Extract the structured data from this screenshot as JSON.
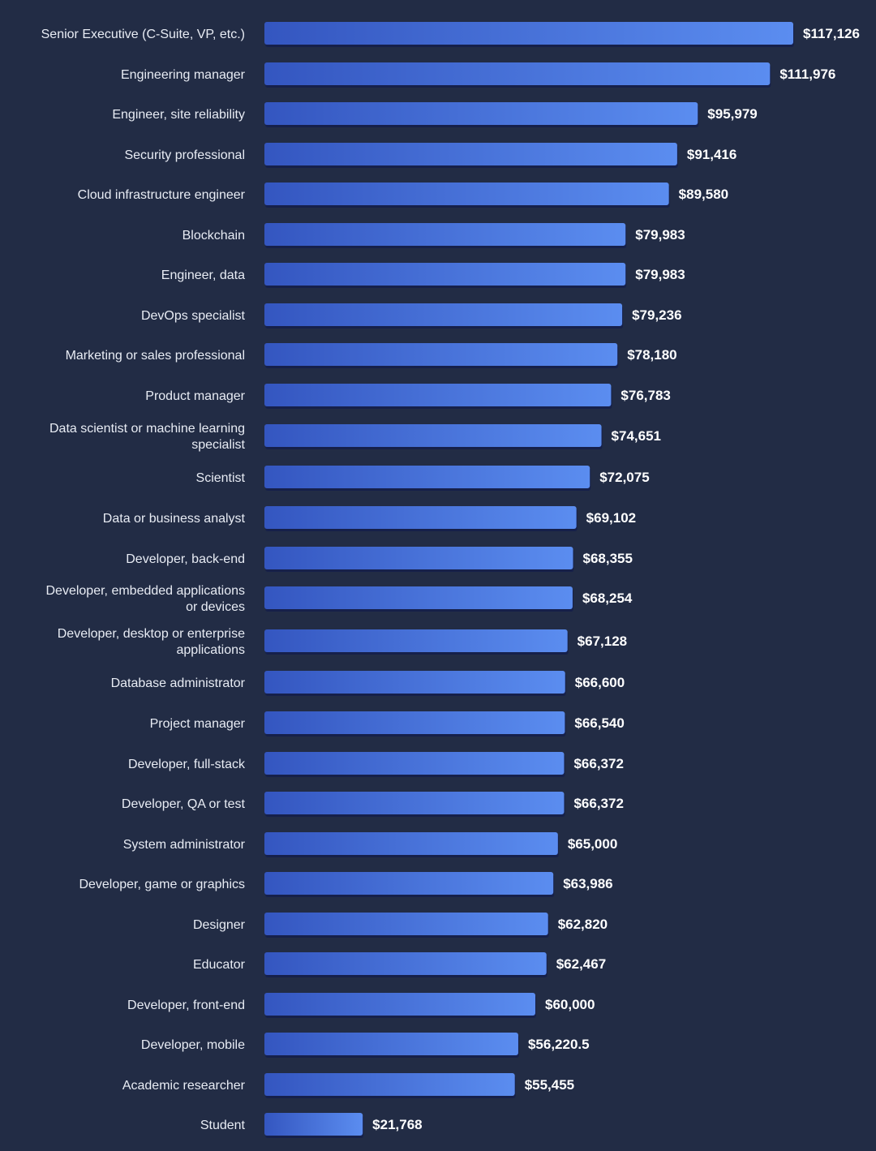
{
  "colors": {
    "background": "#222c45",
    "bar_start": "#3456c0",
    "bar_end": "#5b8df0",
    "bar_shadow": "#16204a",
    "label": "#e8ecf4",
    "value": "#ffffff"
  },
  "chart_data": {
    "type": "bar",
    "orientation": "horizontal",
    "title": "",
    "xlabel": "",
    "ylabel": "",
    "grid": false,
    "value_prefix": "$",
    "xlim": [
      0,
      117126
    ],
    "categories": [
      "Senior Executive (C-Suite, VP, etc.)",
      "Engineering manager",
      "Engineer, site reliability",
      "Security professional",
      "Cloud infrastructure engineer",
      "Blockchain",
      "Engineer, data",
      "DevOps specialist",
      "Marketing or sales professional",
      "Product manager",
      "Data scientist or machine learning specialist",
      "Scientist",
      "Data or business analyst",
      "Developer, back-end",
      "Developer, embedded applications or devices",
      "Developer, desktop or enterprise applications",
      "Database administrator",
      "Project manager",
      "Developer, full-stack",
      "Developer, QA or test",
      "System administrator",
      "Developer, game or graphics",
      "Designer",
      "Educator",
      "Developer, front-end",
      "Developer, mobile",
      "Academic researcher",
      "Student"
    ],
    "category_lines": [
      [
        "Senior Executive (C-Suite, VP, etc.)"
      ],
      [
        "Engineering manager"
      ],
      [
        "Engineer, site reliability"
      ],
      [
        "Security professional"
      ],
      [
        "Cloud infrastructure engineer"
      ],
      [
        "Blockchain"
      ],
      [
        "Engineer, data"
      ],
      [
        "DevOps specialist"
      ],
      [
        "Marketing or sales professional"
      ],
      [
        "Product manager"
      ],
      [
        "Data scientist or machine learning",
        "specialist"
      ],
      [
        "Scientist"
      ],
      [
        "Data or business analyst"
      ],
      [
        "Developer, back-end"
      ],
      [
        "Developer, embedded applications",
        "or devices"
      ],
      [
        "Developer, desktop or enterprise",
        "applications"
      ],
      [
        "Database administrator"
      ],
      [
        "Project manager"
      ],
      [
        "Developer, full-stack"
      ],
      [
        "Developer, QA or test"
      ],
      [
        "System administrator"
      ],
      [
        "Developer, game or graphics"
      ],
      [
        "Designer"
      ],
      [
        "Educator"
      ],
      [
        "Developer, front-end"
      ],
      [
        "Developer, mobile"
      ],
      [
        "Academic researcher"
      ],
      [
        "Student"
      ]
    ],
    "values": [
      117126,
      111976,
      95979,
      91416,
      89580,
      79983,
      79983,
      79236,
      78180,
      76783,
      74651,
      72075,
      69102,
      68355,
      68254,
      67128,
      66600,
      66540,
      66372,
      66372,
      65000,
      63986,
      62820,
      62467,
      60000,
      56220.5,
      55455,
      21768
    ],
    "value_labels": [
      "$117,126",
      "$111,976",
      "$95,979",
      "$91,416",
      "$89,580",
      "$79,983",
      "$79,983",
      "$79,236",
      "$78,180",
      "$76,783",
      "$74,651",
      "$72,075",
      "$69,102",
      "$68,355",
      "$68,254",
      "$67,128",
      "$66,600",
      "$66,540",
      "$66,372",
      "$66,372",
      "$65,000",
      "$63,986",
      "$62,820",
      "$62,467",
      "$60,000",
      "$56,220.5",
      "$55,455",
      "$21,768"
    ]
  }
}
